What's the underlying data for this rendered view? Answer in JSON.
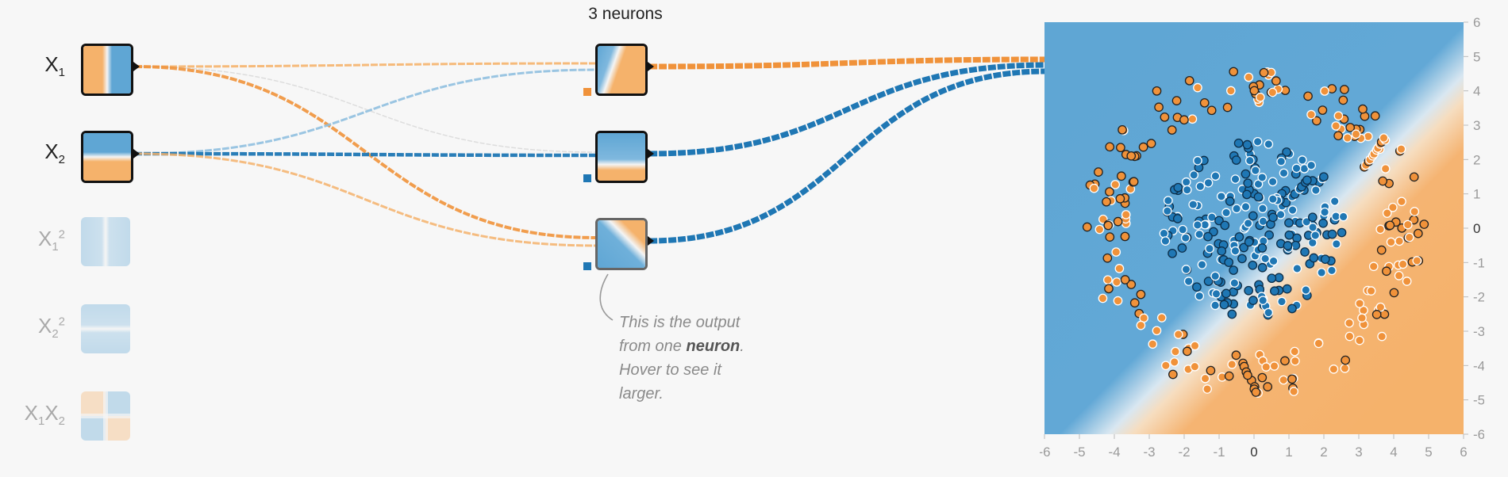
{
  "network": {
    "hidden_layer_title": "3 neurons",
    "inputs": [
      {
        "base": "X",
        "sub": "1",
        "sup": "",
        "active": true
      },
      {
        "base": "X",
        "sub": "2",
        "sup": "",
        "active": true
      },
      {
        "base": "X",
        "sub": "1",
        "sup": "2",
        "active": false
      },
      {
        "base": "X",
        "sub": "2",
        "sup": "2",
        "active": false
      },
      {
        "base": "X",
        "sub": "1",
        "sup": "",
        "base2": "X",
        "sub2": "2",
        "active": false
      }
    ],
    "annotation": {
      "line1": "This is the output",
      "line2_prefix": "from one ",
      "line2_bold": "neuron",
      "line2_suffix": ".",
      "line3": "Hover to see it",
      "line4": "larger."
    }
  },
  "output_plot": {
    "x_ticks": [
      "-6",
      "-5",
      "-4",
      "-3",
      "-2",
      "-1",
      "0",
      "1",
      "2",
      "3",
      "4",
      "5",
      "6"
    ],
    "y_ticks": [
      "6",
      "5",
      "4",
      "3",
      "2",
      "1",
      "0",
      "-1",
      "-2",
      "-3",
      "-4",
      "-5",
      "-6"
    ]
  },
  "colors": {
    "orange": "#f0923a",
    "blue": "#1f77b4",
    "light_orange": "#f5b26b",
    "light_blue": "#5fa6d4",
    "background": "#f7f7f7"
  }
}
